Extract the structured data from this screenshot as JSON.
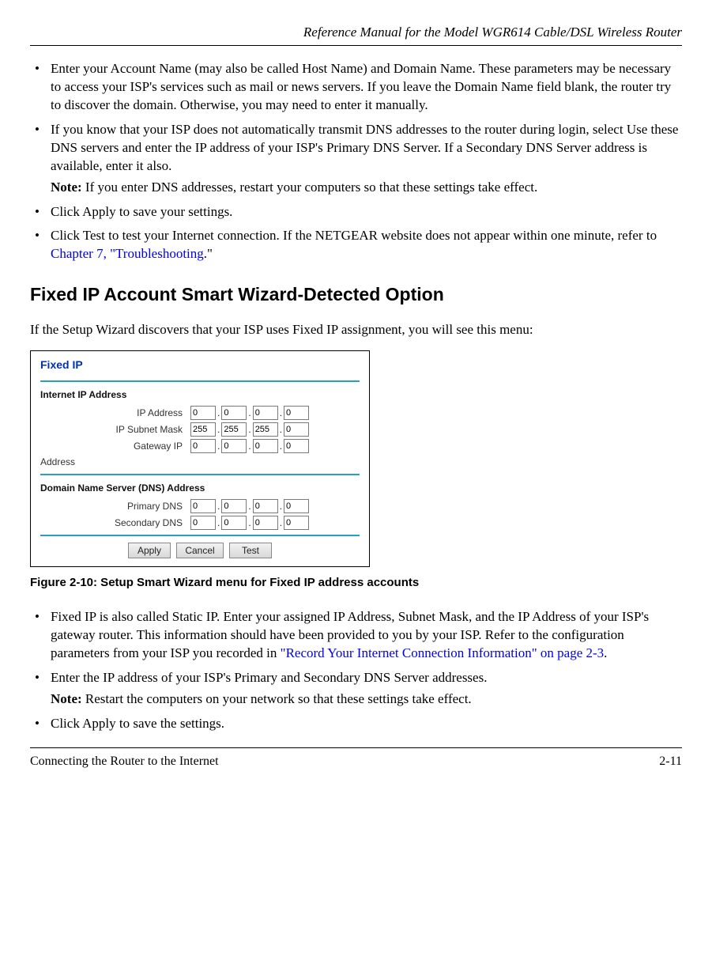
{
  "header": {
    "title": "Reference Manual for the Model WGR614 Cable/DSL Wireless Router"
  },
  "top_list": {
    "item1": "Enter your Account Name (may also be called Host Name) and Domain Name. These parameters may be necessary to access your ISP's services such as mail or news servers. If you leave the Domain Name field blank, the router try to discover the domain. Otherwise, you may need to enter it manually.",
    "item2_main": "If you know that your ISP does not automatically transmit DNS addresses to the router during login, select Use these DNS servers and enter the IP address of your ISP's Primary DNS Server. If a Secondary DNS Server address is available, enter it also.",
    "item2_note_label": "Note:",
    "item2_note_text": " If you enter DNS addresses, restart your computers so that these settings take effect.",
    "item3": "Click Apply to save your settings.",
    "item4_pre": "Click Test to test your Internet connection. If the NETGEAR website does not appear within one minute, refer to ",
    "item4_link": "Chapter 7, \"Troubleshooting",
    "item4_post": ".\""
  },
  "heading": "Fixed IP Account Smart Wizard-Detected Option",
  "intro": "If the Setup Wizard discovers that your ISP uses Fixed IP assignment, you will see this menu:",
  "panel": {
    "title": "Fixed IP",
    "section1": "Internet IP Address",
    "ip_addr_label": "IP Address",
    "subnet_label": "IP Subnet Mask",
    "gateway_label_top": "Gateway IP",
    "gateway_label_bottom": "Address",
    "section2": "Domain Name Server (DNS) Address",
    "primary_dns_label": "Primary DNS",
    "secondary_dns_label": "Secondary DNS",
    "ip_addr": [
      "0",
      "0",
      "0",
      "0"
    ],
    "subnet": [
      "255",
      "255",
      "255",
      "0"
    ],
    "gateway": [
      "0",
      "0",
      "0",
      "0"
    ],
    "primary_dns": [
      "0",
      "0",
      "0",
      "0"
    ],
    "secondary_dns": [
      "0",
      "0",
      "0",
      "0"
    ],
    "buttons": {
      "apply": "Apply",
      "cancel": "Cancel",
      "test": "Test"
    }
  },
  "figure_caption": "Figure 2-10: Setup Smart Wizard menu for Fixed IP address accounts",
  "bottom_list": {
    "item1_pre": "Fixed IP is also called Static IP. Enter your assigned IP Address, Subnet Mask, and the IP Address of your ISP's gateway router. This information should have been provided to you by your ISP. Refer to the configuration parameters from your ISP you recorded in ",
    "item1_link": "\"Record Your Internet Connection Information\" on page 2-3",
    "item1_post": ".",
    "item2_main": "Enter the IP address of your ISP's Primary and Secondary DNS Server addresses.",
    "item2_note_label": "Note:",
    "item2_note_text": " Restart the computers on your network so that these settings take effect.",
    "item3": "Click Apply to save the settings."
  },
  "footer": {
    "left": "Connecting the Router to the Internet",
    "right": "2-11"
  },
  "colors": {
    "link": "#0000ee",
    "panel_title": "#0033aa",
    "panel_sep": "#2aa0bf"
  }
}
